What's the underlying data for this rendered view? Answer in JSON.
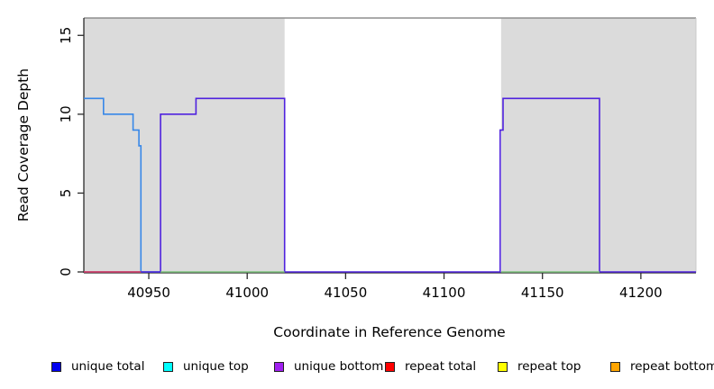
{
  "chart_data": {
    "type": "line",
    "title": "",
    "xlabel": "Coordinate in Reference Genome",
    "ylabel": "Read Coverage Depth",
    "xlim": [
      40917,
      41228
    ],
    "ylim": [
      0,
      16.1
    ],
    "x_ticks": [
      40950,
      41000,
      41050,
      41100,
      41150,
      41200
    ],
    "y_ticks": [
      0,
      5,
      10,
      15
    ],
    "grid": false,
    "legend_position": "bottom",
    "background_color": "#ffffff",
    "shade_color": "#dbdbdb",
    "shaded_regions": [
      {
        "name": "covered-block-left",
        "x_start": 40917,
        "x_end": 41019
      },
      {
        "name": "covered-block-right",
        "x_start": 41129,
        "x_end": 41228
      }
    ],
    "series": [
      {
        "name": "unique-coverage-step-blue",
        "color": "#3787e8",
        "points": [
          [
            40917,
            11
          ],
          [
            40927,
            11
          ],
          [
            40927,
            10
          ],
          [
            40942,
            10
          ],
          [
            40942,
            9
          ],
          [
            40945,
            9
          ],
          [
            40945,
            8
          ],
          [
            40946,
            8
          ],
          [
            40946,
            0
          ],
          [
            40956,
            0
          ]
        ]
      },
      {
        "name": "unique-bottom-step-purple",
        "color": "#4f22de",
        "points": [
          [
            40917,
            0
          ],
          [
            40956,
            0
          ],
          [
            40956,
            10
          ],
          [
            40974,
            10
          ],
          [
            40974,
            11
          ],
          [
            41019,
            11
          ],
          [
            41019,
            0
          ],
          [
            41128.5,
            0
          ],
          [
            41128.5,
            9
          ],
          [
            41130,
            9
          ],
          [
            41130,
            11
          ],
          [
            41179,
            11
          ],
          [
            41179,
            0
          ],
          [
            41228,
            0
          ]
        ]
      },
      {
        "name": "repeat-total-baseline-red",
        "color": "#de4257",
        "points": [
          [
            40917,
            0
          ],
          [
            40946,
            0
          ]
        ]
      },
      {
        "name": "baseline-green-left",
        "color": "#7ec57e",
        "points": [
          [
            40956,
            0
          ],
          [
            41019,
            0
          ]
        ]
      },
      {
        "name": "baseline-green-right",
        "color": "#7ec57e",
        "points": [
          [
            41129,
            0
          ],
          [
            41179,
            0
          ]
        ]
      }
    ],
    "legend": [
      {
        "label": "unique total",
        "color": "#0000f0"
      },
      {
        "label": "unique top",
        "color": "#00ffff"
      },
      {
        "label": "unique bottom",
        "color": "#a020f0"
      },
      {
        "label": "repeat total",
        "color": "#ff0000"
      },
      {
        "label": "repeat top",
        "color": "#ffff00"
      },
      {
        "label": "repeat bottom",
        "color": "#ffa500"
      }
    ]
  }
}
